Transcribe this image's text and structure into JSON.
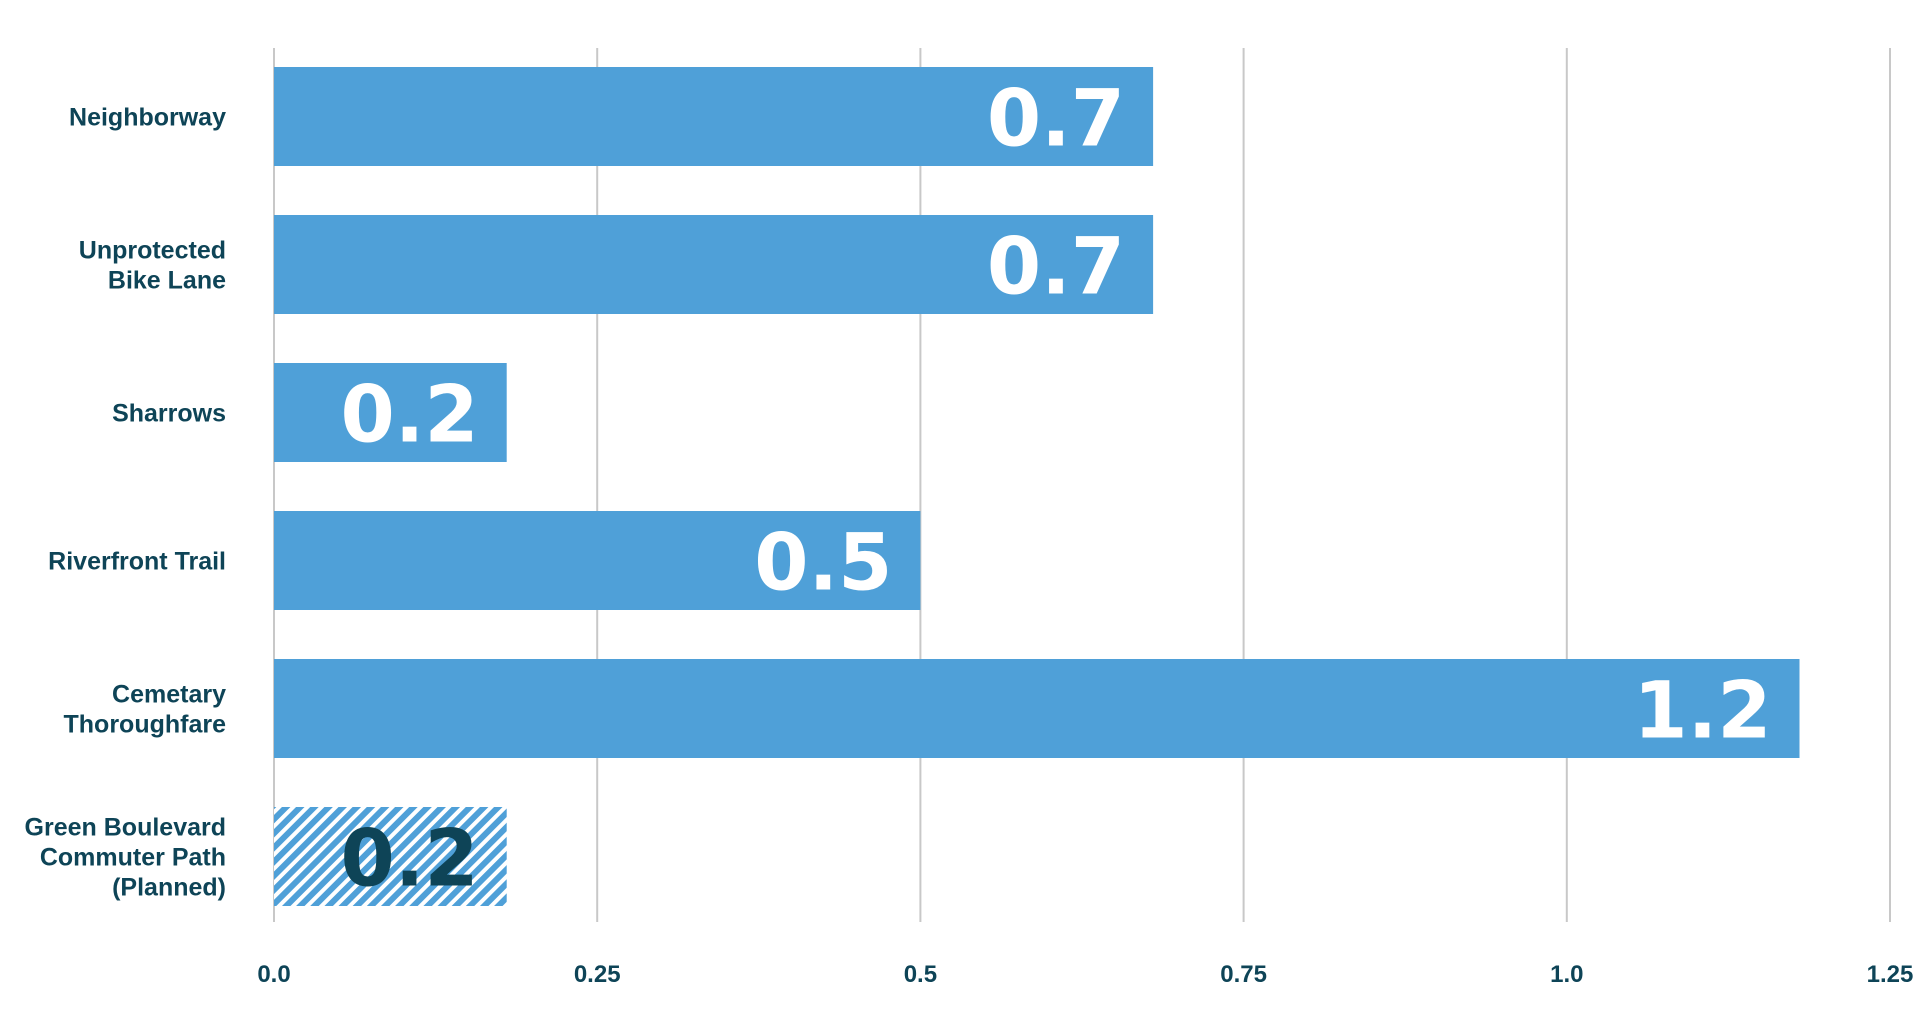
{
  "chart_data": {
    "type": "bar",
    "orientation": "horizontal",
    "title": "",
    "xlabel": "",
    "ylabel": "",
    "xlim": [
      0,
      1.25
    ],
    "grid": true,
    "legend": "none",
    "ticks": [
      {
        "value": 0,
        "label": "0.0"
      },
      {
        "value": 0.25,
        "label": "0.25"
      },
      {
        "value": 0.5,
        "label": "0.5"
      },
      {
        "value": 0.75,
        "label": "0.75"
      },
      {
        "value": 1.0,
        "label": "1.0"
      },
      {
        "value": 1.25,
        "label": "1.25"
      }
    ],
    "categories": [
      [
        "Neighborway"
      ],
      [
        "Unprotected",
        "Bike Lane"
      ],
      [
        "Sharrows"
      ],
      [
        "Riverfront Trail"
      ],
      [
        "Cemetary",
        "Thoroughfare"
      ],
      [
        "Green Boulevard",
        "Commuter Path",
        "(Planned)"
      ]
    ],
    "values": [
      0.68,
      0.68,
      0.18,
      0.5,
      1.18,
      0.18
    ],
    "data_labels": [
      "0.7",
      "0.7",
      "0.2",
      "0.5",
      "1.2",
      "0.2"
    ],
    "planned": [
      false,
      false,
      false,
      false,
      false,
      true
    ],
    "colors": {
      "bar": "#4fa0d8",
      "planned_hatch": "#4fa0d8",
      "label_on_bar": "#ffffff",
      "label_on_hatch": "#0e4457",
      "axis_text": "#0e4457",
      "grid": "#c8c8c8"
    }
  }
}
